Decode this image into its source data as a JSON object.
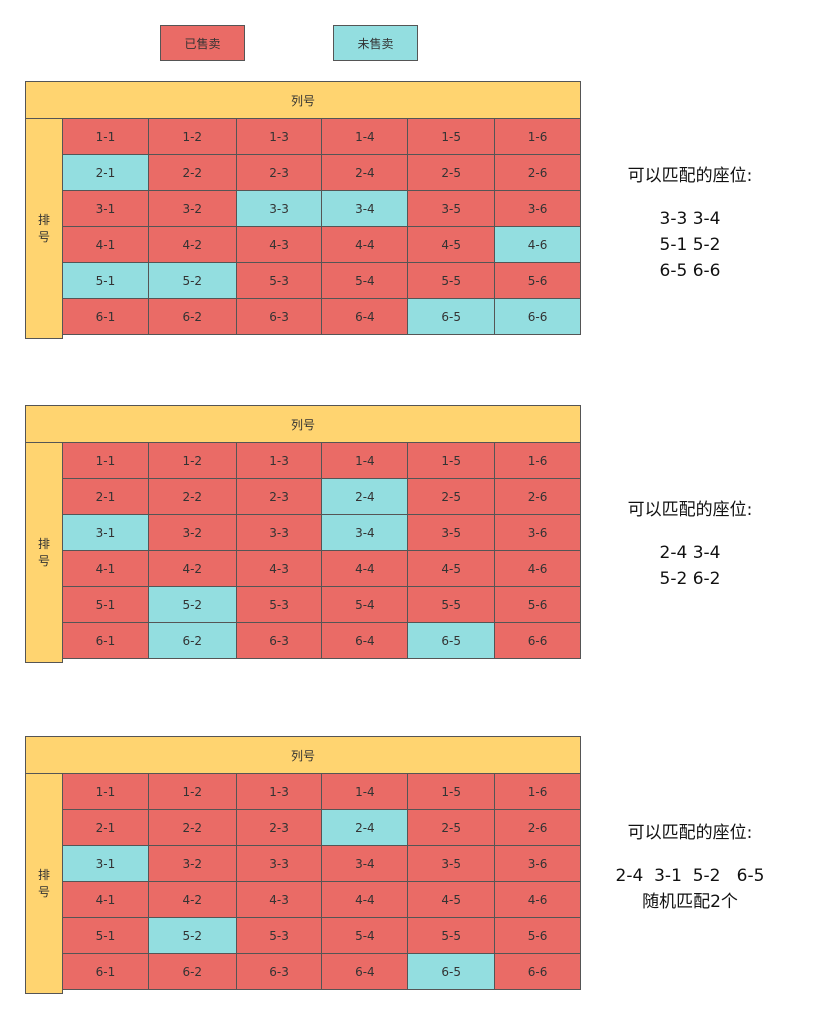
{
  "legend": {
    "sold_label": "已售卖",
    "unsold_label": "未售卖"
  },
  "colors": {
    "sold": "#EA6B66",
    "unsold": "#93DEE0",
    "header": "#FFD470"
  },
  "grids": [
    {
      "col_header": "列号",
      "row_header": "排号",
      "unsold": [
        "2-1",
        "3-3",
        "3-4",
        "4-6",
        "5-1",
        "5-2",
        "6-5",
        "6-6"
      ],
      "note_title": "可以匹配的座位:",
      "note_lines": [
        "3-3 3-4",
        "5-1 5-2",
        "6-5 6-6"
      ]
    },
    {
      "col_header": "列号",
      "row_header": "排号",
      "unsold": [
        "2-4",
        "3-1",
        "3-4",
        "5-2",
        "6-2",
        "6-5"
      ],
      "note_title": "可以匹配的座位:",
      "note_lines": [
        "2-4 3-4",
        "5-2 6-2"
      ]
    },
    {
      "col_header": "列号",
      "row_header": "排号",
      "unsold": [
        "2-4",
        "3-1",
        "5-2",
        "6-5"
      ],
      "note_title": "可以匹配的座位:",
      "note_lines": [
        "2-4  3-1  5-2   6-5",
        "随机匹配2个"
      ]
    }
  ]
}
